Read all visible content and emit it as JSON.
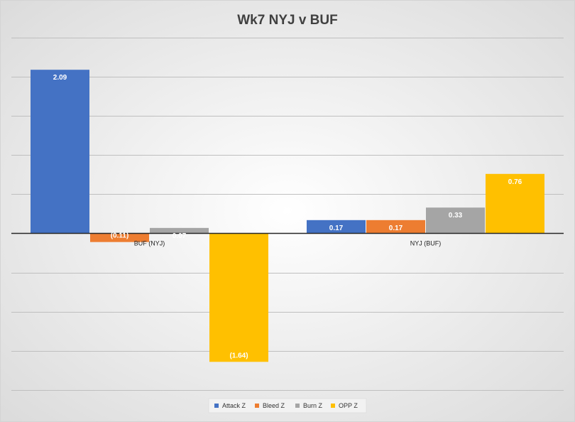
{
  "chart_data": {
    "type": "bar",
    "title": "Wk7 NYJ v BUF",
    "categories": [
      "BUF (NYJ)",
      "NYJ (BUF)"
    ],
    "series": [
      {
        "name": "Attack Z",
        "color": "#4472C4",
        "values": [
          2.09,
          0.17
        ],
        "labels": [
          "2.09",
          "0.17"
        ]
      },
      {
        "name": "Bleed Z",
        "color": "#ED7D31",
        "values": [
          -0.11,
          0.17
        ],
        "labels": [
          "(0.11)",
          "0.17"
        ]
      },
      {
        "name": "Burn Z",
        "color": "#A5A5A5",
        "values": [
          0.07,
          0.33
        ],
        "labels": [
          "0.07",
          "0.33"
        ]
      },
      {
        "name": "OPP Z",
        "color": "#FFC000",
        "values": [
          -1.64,
          0.76
        ],
        "labels": [
          "(1.64)",
          "0.76"
        ]
      }
    ],
    "ylim": [
      -2,
      2.5
    ],
    "grid": true,
    "legend_position": "bottom"
  }
}
